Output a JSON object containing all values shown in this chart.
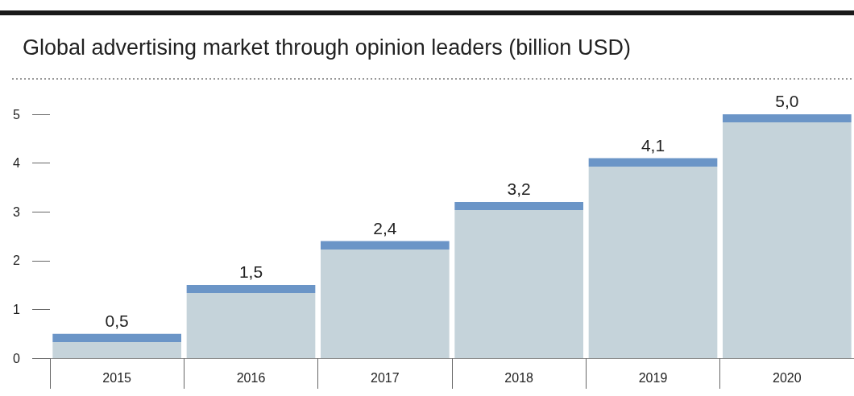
{
  "chart_data": {
    "type": "bar",
    "title": "Global advertising market through opinion leaders (billion USD)",
    "categories": [
      "2015",
      "2016",
      "2017",
      "2018",
      "2019",
      "2020"
    ],
    "values": [
      0.5,
      1.5,
      2.4,
      3.2,
      4.1,
      5.0
    ],
    "value_labels": [
      "0,5",
      "1,5",
      "2,4",
      "3,2",
      "4,1",
      "5,0"
    ],
    "color": "#c5d3da",
    "ylim": [
      0,
      5
    ],
    "yticks": [
      0,
      1,
      2,
      3,
      4,
      5
    ],
    "grid": false
  }
}
